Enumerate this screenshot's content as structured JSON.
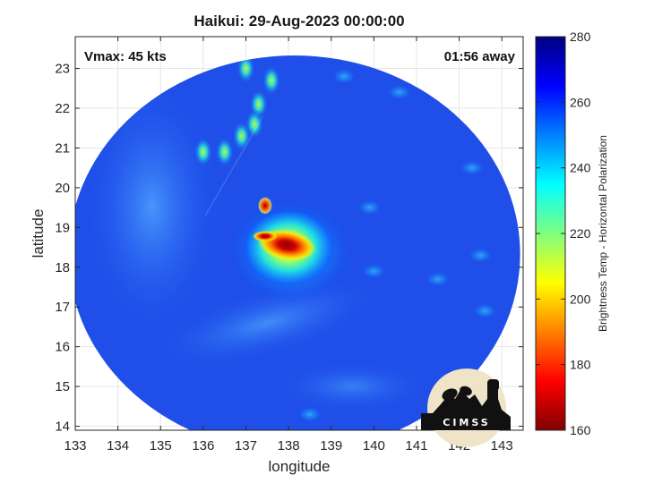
{
  "chart_data": {
    "type": "heatmap",
    "title": "Haikui: 29-Aug-2023 00:00:00",
    "xlabel": "longitude",
    "ylabel": "latitude",
    "xlim": [
      133,
      143.5
    ],
    "ylim": [
      13.9,
      23.8
    ],
    "x_ticks": [
      "133",
      "134",
      "135",
      "136",
      "137",
      "138",
      "139",
      "140",
      "141",
      "142",
      "143"
    ],
    "y_ticks": [
      "14",
      "15",
      "16",
      "17",
      "18",
      "19",
      "20",
      "21",
      "22",
      "23"
    ],
    "grid": true,
    "annotations": {
      "vmax": "Vmax: 45 kts",
      "time_offset": "01:56 away"
    },
    "colorbar": {
      "label": "Brightness Temp - Horizontal Polarization",
      "range": [
        160,
        280
      ],
      "ticks": [
        "160",
        "180",
        "200",
        "220",
        "240",
        "260",
        "280"
      ],
      "colormap": [
        "#800000",
        "#ff0000",
        "#ff8000",
        "#ffff00",
        "#80ff80",
        "#00ffff",
        "#0080ff",
        "#0000ff",
        "#000080"
      ]
    },
    "swath": {
      "center_lon": 138.2,
      "center_lat": 18.4,
      "background_value": 262
    },
    "features": [
      {
        "lon": 138.0,
        "lat": 18.5,
        "value": 178
      },
      {
        "lon": 137.45,
        "lat": 19.55,
        "value": 200
      },
      {
        "lon": 137.6,
        "lat": 22.7,
        "value": 242
      },
      {
        "lon": 137.3,
        "lat": 22.1,
        "value": 240
      },
      {
        "lon": 137.2,
        "lat": 21.6,
        "value": 242
      },
      {
        "lon": 136.9,
        "lat": 21.3,
        "value": 240
      },
      {
        "lon": 136.5,
        "lat": 20.9,
        "value": 245
      },
      {
        "lon": 136.0,
        "lat": 20.9,
        "value": 240
      },
      {
        "lon": 137.0,
        "lat": 23.0,
        "value": 244
      },
      {
        "lon": 139.3,
        "lat": 22.8,
        "value": 252
      },
      {
        "lon": 140.6,
        "lat": 22.4,
        "value": 255
      },
      {
        "lon": 141.5,
        "lat": 17.7,
        "value": 250
      },
      {
        "lon": 140.0,
        "lat": 17.9,
        "value": 252
      },
      {
        "lon": 138.5,
        "lat": 14.3,
        "value": 245
      },
      {
        "lon": 139.9,
        "lat": 19.5,
        "value": 250
      },
      {
        "lon": 142.3,
        "lat": 20.5,
        "value": 253
      },
      {
        "lon": 142.5,
        "lat": 18.3,
        "value": 252
      },
      {
        "lon": 142.6,
        "lat": 16.9,
        "value": 250
      }
    ]
  },
  "logo": {
    "text": "CIMSS"
  },
  "colors": {
    "axis": "#262626",
    "grid": "#e6e6e6"
  }
}
